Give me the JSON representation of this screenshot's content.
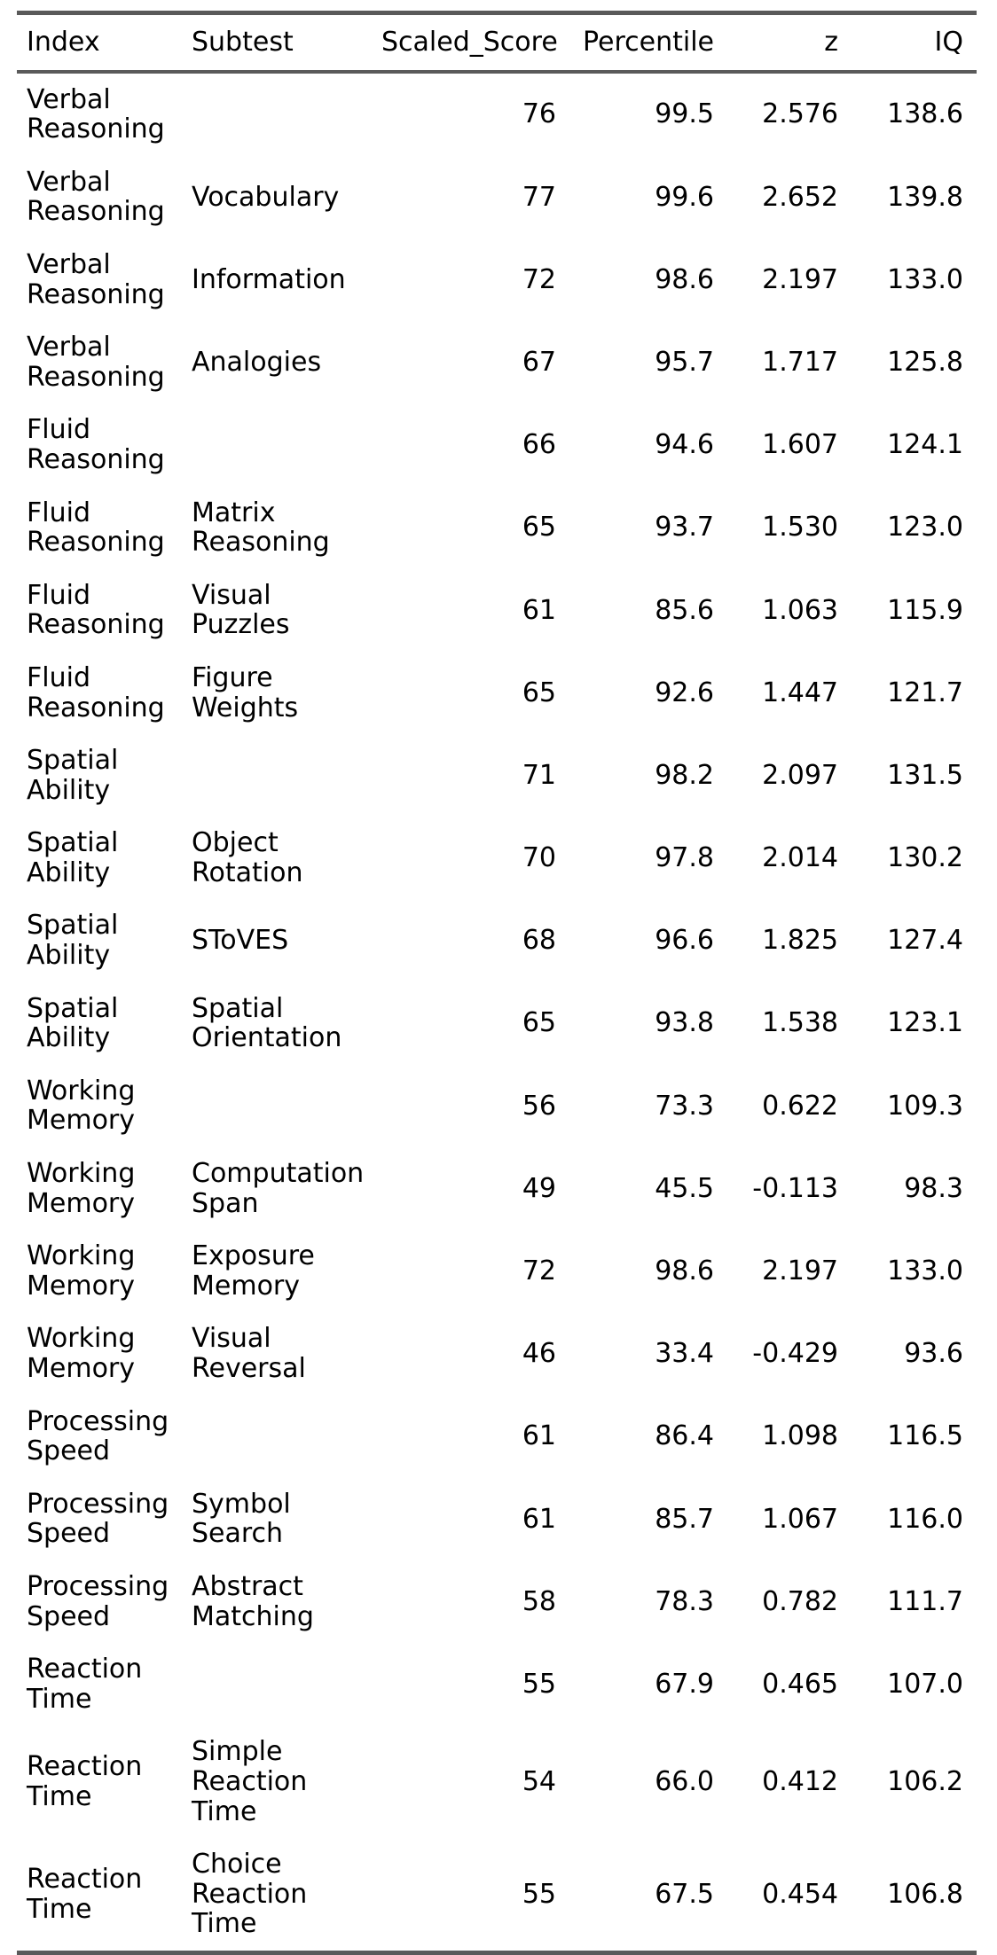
{
  "colors": {
    "rule": "#5a5a5a",
    "text": "#000000",
    "background": "#ffffff"
  },
  "chart_data": {
    "type": "table",
    "columns": [
      "Index",
      "Subtest",
      "Scaled_Score",
      "Percentile",
      "z",
      "IQ"
    ],
    "rows": [
      [
        "Verbal Reasoning",
        "",
        "76",
        "99.5",
        "2.576",
        "138.6"
      ],
      [
        "Verbal Reasoning",
        "Vocabulary",
        "77",
        "99.6",
        "2.652",
        "139.8"
      ],
      [
        "Verbal Reasoning",
        "Information",
        "72",
        "98.6",
        "2.197",
        "133.0"
      ],
      [
        "Verbal Reasoning",
        "Analogies",
        "67",
        "95.7",
        "1.717",
        "125.8"
      ],
      [
        "Fluid Reasoning",
        "",
        "66",
        "94.6",
        "1.607",
        "124.1"
      ],
      [
        "Fluid Reasoning",
        "Matrix Reasoning",
        "65",
        "93.7",
        "1.530",
        "123.0"
      ],
      [
        "Fluid Reasoning",
        "Visual Puzzles",
        "61",
        "85.6",
        "1.063",
        "115.9"
      ],
      [
        "Fluid Reasoning",
        "Figure Weights",
        "65",
        "92.6",
        "1.447",
        "121.7"
      ],
      [
        "Spatial Ability",
        "",
        "71",
        "98.2",
        "2.097",
        "131.5"
      ],
      [
        "Spatial Ability",
        "Object Rotation",
        "70",
        "97.8",
        "2.014",
        "130.2"
      ],
      [
        "Spatial Ability",
        "SToVES",
        "68",
        "96.6",
        "1.825",
        "127.4"
      ],
      [
        "Spatial Ability",
        "Spatial Orientation",
        "65",
        "93.8",
        "1.538",
        "123.1"
      ],
      [
        "Working Memory",
        "",
        "56",
        "73.3",
        "0.622",
        "109.3"
      ],
      [
        "Working Memory",
        "Computation Span",
        "49",
        "45.5",
        "-0.113",
        "98.3"
      ],
      [
        "Working Memory",
        "Exposure Memory",
        "72",
        "98.6",
        "2.197",
        "133.0"
      ],
      [
        "Working Memory",
        "Visual Reversal",
        "46",
        "33.4",
        "-0.429",
        "93.6"
      ],
      [
        "Processing Speed",
        "",
        "61",
        "86.4",
        "1.098",
        "116.5"
      ],
      [
        "Processing Speed",
        "Symbol Search",
        "61",
        "85.7",
        "1.067",
        "116.0"
      ],
      [
        "Processing Speed",
        "Abstract Matching",
        "58",
        "78.3",
        "0.782",
        "111.7"
      ],
      [
        "Reaction Time",
        "",
        "55",
        "67.9",
        "0.465",
        "107.0"
      ],
      [
        "Reaction Time",
        "Simple Reaction Time",
        "54",
        "66.0",
        "0.412",
        "106.2"
      ],
      [
        "Reaction Time",
        "Choice Reaction Time",
        "55",
        "67.5",
        "0.454",
        "106.8"
      ]
    ]
  }
}
